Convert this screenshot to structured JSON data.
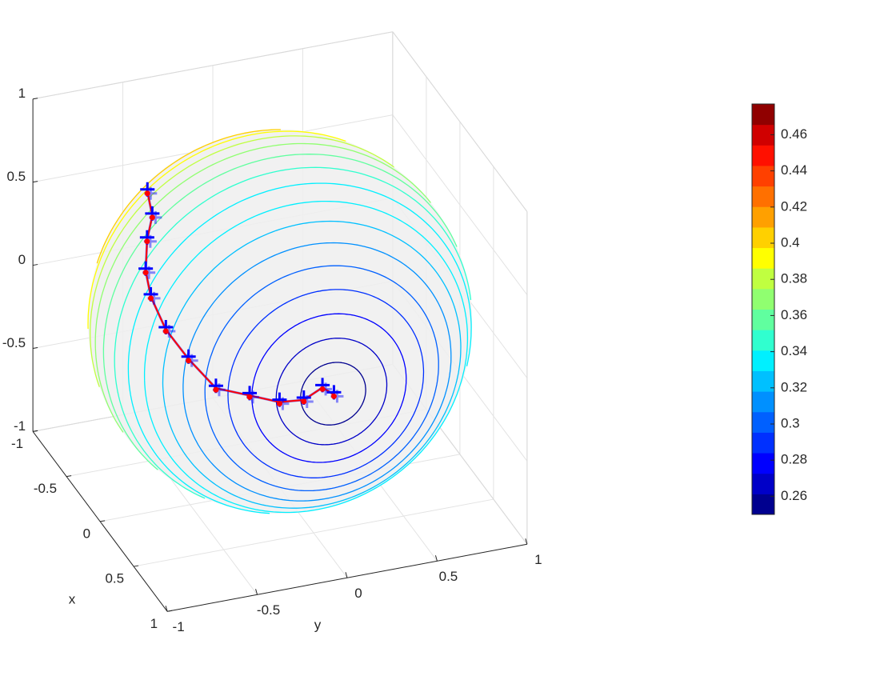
{
  "chart_data": {
    "type": "sphere-contour3d",
    "xlabel": "x",
    "ylabel": "y",
    "xlim": [
      -1,
      1
    ],
    "ylim": [
      -1,
      1
    ],
    "zlim": [
      -1,
      1
    ],
    "xticks": [
      -1,
      -0.5,
      0,
      0.5,
      1
    ],
    "yticks": [
      -1,
      -0.5,
      0,
      0.5,
      1
    ],
    "zticks": [
      -1,
      -0.5,
      0,
      0.5,
      1
    ],
    "grid": true,
    "contour_levels": [
      0.26,
      0.27,
      0.28,
      0.29,
      0.3,
      0.31,
      0.32,
      0.33,
      0.34,
      0.35,
      0.36,
      0.37,
      0.38,
      0.39,
      0.4,
      0.41,
      0.42,
      0.43,
      0.44,
      0.45,
      0.46,
      0.47
    ],
    "colorbar": {
      "clim": [
        0.25,
        0.477
      ],
      "ticks": [
        0.26,
        0.28,
        0.3,
        0.32,
        0.34,
        0.36,
        0.38,
        0.4,
        0.42,
        0.44,
        0.46
      ],
      "colormap": [
        "#00008f",
        "#0000c8",
        "#0000ff",
        "#0030ff",
        "#0060ff",
        "#0090ff",
        "#00c0ff",
        "#00f0ff",
        "#30ffcf",
        "#60ff9f",
        "#90ff70",
        "#c0ff40",
        "#ffff00",
        "#ffd000",
        "#ffa000",
        "#ff7000",
        "#ff4000",
        "#ff1000",
        "#d00000",
        "#900000"
      ]
    },
    "path": {
      "color": "#ff0000",
      "marker_color": "#0000ff",
      "x": [
        -0.34,
        -0.08,
        0.03,
        0.17,
        0.3,
        0.47,
        0.62,
        0.76,
        0.86,
        0.93,
        0.97,
        0.98,
        0.99
      ],
      "y": [
        -0.61,
        -0.68,
        -0.75,
        -0.81,
        -0.83,
        -0.81,
        -0.74,
        -0.64,
        -0.49,
        -0.35,
        -0.23,
        -0.13,
        -0.07
      ],
      "z": [
        0.72,
        0.73,
        0.66,
        0.56,
        0.48,
        0.37,
        0.26,
        0.14,
        0.12,
        0.09,
        0.1,
        0.16,
        0.11
      ]
    }
  }
}
